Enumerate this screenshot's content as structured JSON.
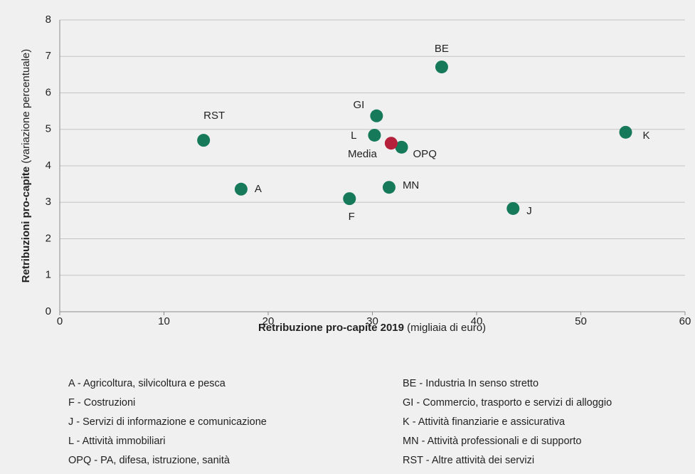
{
  "chart_data": {
    "type": "scatter",
    "series": [
      {
        "color": "#167a5a",
        "x": [
          17.4,
          36.65,
          27.8,
          30.4,
          43.5,
          54.3,
          30.2,
          31.6,
          32.8,
          13.8
        ],
        "values": [
          3.36,
          6.71,
          3.1,
          5.37,
          2.83,
          4.92,
          4.84,
          3.41,
          4.51,
          4.7
        ],
        "labels": [
          "A",
          "BE",
          "F",
          "GI",
          "J",
          "K",
          "L",
          "MN",
          "OPQ",
          "RST"
        ]
      },
      {
        "color": "#b5203a",
        "x": [
          31.8
        ],
        "values": [
          4.62
        ],
        "labels": [
          "Media"
        ]
      }
    ],
    "xlabel": {
      "bold": "Retribuzione pro-capite 2019",
      "normal": "(migliaia di euro)"
    },
    "ylabel": {
      "bold": "Retribuzioni pro-capite",
      "normal": "(variazione percentuale)"
    },
    "xlim": [
      0,
      60
    ],
    "xticks": [
      0,
      10,
      20,
      30,
      40,
      50,
      60
    ],
    "ylim": [
      0,
      8
    ],
    "yticks": [
      0,
      1,
      2,
      3,
      4,
      5,
      6,
      7,
      8
    ],
    "grid": true,
    "notes": [
      "A - Agricoltura, silvicoltura e pesca",
      "BE - Industria In senso stretto",
      "F - Costruzioni",
      "GI - Commercio, trasporto e servizi di alloggio",
      "J - Servizi di informazione e comunicazione",
      "K - Attività finanziarie e assicurativa",
      "L - Attività immobiliari",
      "MN - Attività professionali e di supporto",
      "OPQ - PA, difesa, istruzione, sanità",
      "RST - Altre attività  dei servizi"
    ]
  }
}
